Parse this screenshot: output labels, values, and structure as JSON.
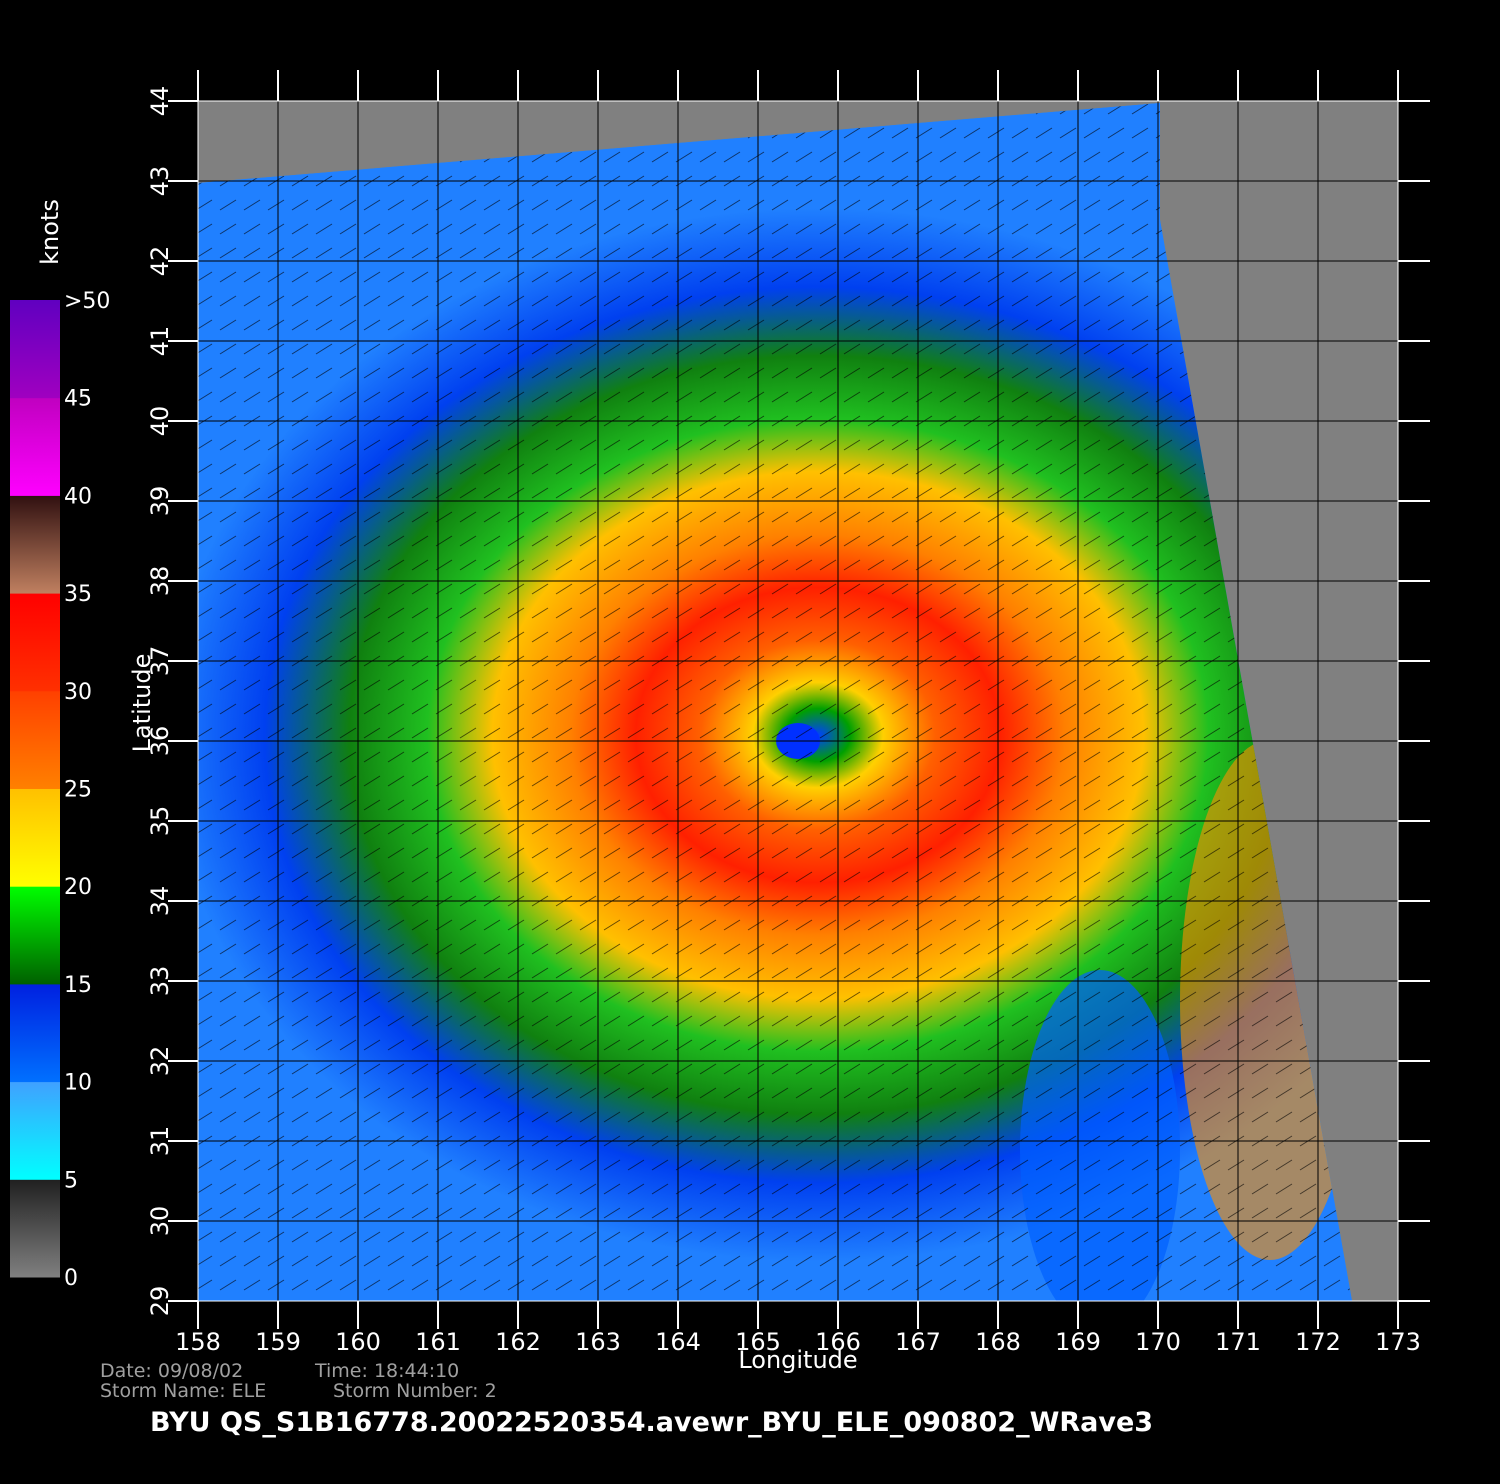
{
  "chart_data": {
    "type": "heatmap",
    "title": "BYU  QS_S1B16778.20022520354.avewr_BYU_ELE_090802_WRave3",
    "x_label": "Longitude",
    "y_label": "Latitude",
    "xlim": [
      158,
      173
    ],
    "xticks": [
      158,
      159,
      160,
      161,
      162,
      163,
      164,
      165,
      166,
      167,
      168,
      169,
      170,
      171,
      172,
      173
    ],
    "ylim": [
      29,
      44
    ],
    "yticks": [
      29,
      30,
      31,
      32,
      33,
      34,
      35,
      36,
      37,
      38,
      39,
      40,
      41,
      42,
      43,
      44
    ],
    "grid": true,
    "date": "Date: 09/08/02",
    "time": "Time: 18:44:10",
    "storm_name": "Storm Name: ELE",
    "storm_number": "Storm Number: 2",
    "colorbar": {
      "label": "knots",
      "ticks": [
        0,
        5,
        10,
        15,
        20,
        25,
        30,
        35,
        40,
        45,
        {
          "value": 50,
          "label": ">50"
        }
      ],
      "colors": [
        [
          "#808080",
          "#202020"
        ],
        [
          "#00ffff",
          "#40a0ff"
        ],
        [
          "#0070ff",
          "#0020e0"
        ],
        [
          "#006000",
          "#00ff00"
        ],
        [
          "#ffff00",
          "#ffc000"
        ],
        [
          "#ff8000",
          "#ff4000"
        ],
        [
          "#ff3000",
          "#ff0000"
        ],
        [
          "#c08060",
          "#301010"
        ],
        [
          "#ff00ff",
          "#c000c0"
        ],
        [
          "#a000c0",
          "#6000c0"
        ]
      ]
    }
  }
}
